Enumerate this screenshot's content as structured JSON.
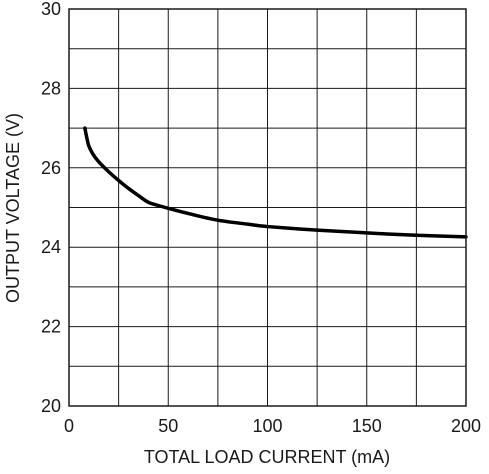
{
  "chart_data": {
    "type": "line",
    "title": "",
    "xlabel": "TOTAL LOAD CURRENT (mA)",
    "ylabel": "OUTPUT VOLTAGE (V)",
    "xlim": [
      0,
      200
    ],
    "ylim": [
      20,
      30
    ],
    "x_ticks": [
      0,
      50,
      100,
      150,
      200
    ],
    "x_tick_labels": [
      "0",
      "50",
      "100",
      "150",
      "200"
    ],
    "y_ticks": [
      20,
      22,
      24,
      26,
      28,
      30
    ],
    "y_tick_labels": [
      "20",
      "22",
      "24",
      "26",
      "28",
      "30"
    ],
    "grid": true,
    "x_minor_divisions": 8,
    "y_minor_divisions": 10,
    "line_color": "#000000",
    "grid_color": "#1a1a1a",
    "series": [
      {
        "name": "",
        "x": [
          8,
          9,
          10,
          12,
          15,
          20,
          25,
          30,
          35,
          40,
          45,
          50,
          60,
          75,
          90,
          100,
          125,
          150,
          175,
          200
        ],
        "y": [
          27.0,
          26.75,
          26.55,
          26.35,
          26.15,
          25.9,
          25.68,
          25.48,
          25.3,
          25.13,
          25.05,
          24.98,
          24.85,
          24.68,
          24.58,
          24.52,
          24.43,
          24.36,
          24.3,
          24.26
        ]
      }
    ]
  }
}
